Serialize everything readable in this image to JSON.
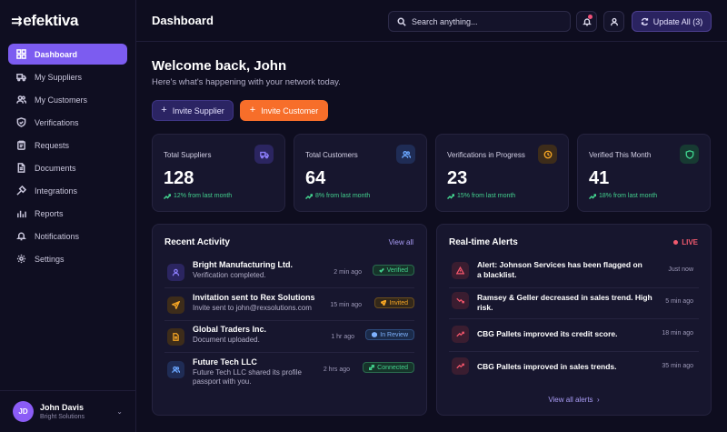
{
  "brand": {
    "name": "efektiva"
  },
  "sidebar": {
    "items": [
      {
        "label": "Dashboard",
        "icon": "grid-icon",
        "active": true
      },
      {
        "label": "My Suppliers",
        "icon": "truck-icon"
      },
      {
        "label": "My Customers",
        "icon": "users-icon"
      },
      {
        "label": "Verifications",
        "icon": "shield-check-icon"
      },
      {
        "label": "Requests",
        "icon": "clipboard-icon"
      },
      {
        "label": "Documents",
        "icon": "document-icon"
      },
      {
        "label": "Integrations",
        "icon": "plug-icon"
      },
      {
        "label": "Reports",
        "icon": "bar-chart-icon"
      },
      {
        "label": "Notifications",
        "icon": "bell-icon"
      },
      {
        "label": "Settings",
        "icon": "gear-icon"
      }
    ],
    "user": {
      "initials": "JD",
      "name": "John Davis",
      "org": "Bright Solutions"
    }
  },
  "header": {
    "title": "Dashboard",
    "search_placeholder": "Search anything...",
    "update_label": "Update All (3)"
  },
  "welcome": {
    "title": "Welcome back, John",
    "subtitle": "Here's what's happening with your network today."
  },
  "actions": {
    "invite_supplier": "Invite Supplier",
    "invite_customer": "Invite Customer"
  },
  "stats": [
    {
      "label": "Total Suppliers",
      "value": "128",
      "trend": "12% from last month",
      "icon": "truck-icon",
      "color": "#8b7cf8",
      "bg": "#2b2560"
    },
    {
      "label": "Total Customers",
      "value": "64",
      "trend": "8% from last month",
      "icon": "users-icon",
      "color": "#6aa6ff",
      "bg": "#1f2c55"
    },
    {
      "label": "Verifications in Progress",
      "value": "23",
      "trend": "15% from last month",
      "icon": "clock-icon",
      "color": "#f5a524",
      "bg": "#3d2c1a"
    },
    {
      "label": "Verified This Month",
      "value": "41",
      "trend": "18% from last month",
      "icon": "shield-icon",
      "color": "#3fd28e",
      "bg": "#173a32"
    }
  ],
  "activity": {
    "title": "Recent Activity",
    "view_all": "View all",
    "items": [
      {
        "title": "Bright Manufacturing Ltd.",
        "desc": "Verification completed.",
        "time": "2 min ago",
        "badge": "Verified",
        "icon": "user-icon"
      },
      {
        "title": "Invitation sent to Rex Solutions",
        "desc": "Invite sent to john@rexsolutions.com",
        "time": "15 min ago",
        "badge": "Invited",
        "icon": "send-icon"
      },
      {
        "title": "Global Traders Inc.",
        "desc": "Document uploaded.",
        "time": "1 hr ago",
        "badge": "In Review",
        "icon": "document-icon"
      },
      {
        "title": "Future Tech LLC",
        "desc": "Future Tech LLC shared its profile passport with you.",
        "time": "2 hrs ago",
        "badge": "Connected",
        "icon": "users-icon"
      }
    ]
  },
  "alerts": {
    "title": "Real-time Alerts",
    "live_label": "LIVE",
    "view_all": "View all alerts",
    "items": [
      {
        "text": "Alert: Johnson Services has been flagged on a blacklist.",
        "time": "Just now",
        "icon": "warning-icon"
      },
      {
        "text": "Ramsey & Geller decreased in sales trend. High risk.",
        "time": "5 min ago",
        "icon": "trend-down-icon"
      },
      {
        "text": "CBG Pallets improved its credit score.",
        "time": "18 min ago",
        "icon": "trend-up-icon"
      },
      {
        "text": "CBG Pallets improved in sales trends.",
        "time": "35 min ago",
        "icon": "trend-up-icon"
      }
    ]
  }
}
